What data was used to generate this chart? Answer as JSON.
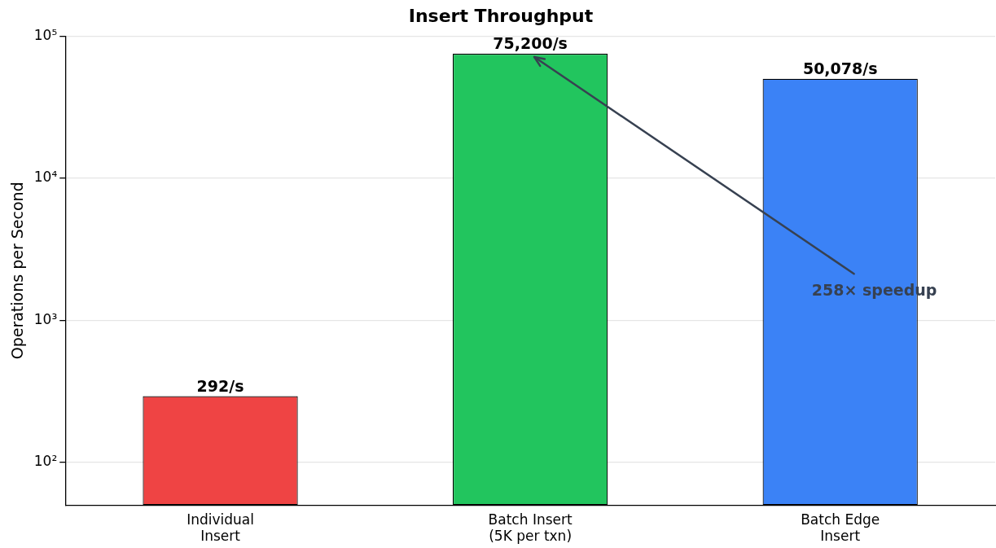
{
  "chart_data": {
    "type": "bar",
    "title": "Insert Throughput",
    "ylabel": "Operations per Second",
    "categories": [
      "Individual\nInsert",
      "Batch Insert\n(5K per txn)",
      "Batch Edge\nInsert"
    ],
    "values": [
      292,
      75200,
      50078
    ],
    "colors": [
      "#ef4444",
      "#22c55e",
      "#3b82f6"
    ],
    "value_labels": [
      "292/s",
      "75,200/s",
      "50,078/s"
    ],
    "log": "y",
    "ylim": [
      50,
      100000
    ],
    "yticks": [
      {
        "value": 100,
        "label": "10²"
      },
      {
        "value": 1000,
        "label": "10³"
      },
      {
        "value": 10000,
        "label": "10⁴"
      },
      {
        "value": 100000,
        "label": "10⁵"
      }
    ],
    "grid": "y",
    "legend": false,
    "annotations": [
      {
        "text": "258× speedup",
        "x": "Batch Insert\n(5K per txn)",
        "y": 75200
      }
    ]
  }
}
